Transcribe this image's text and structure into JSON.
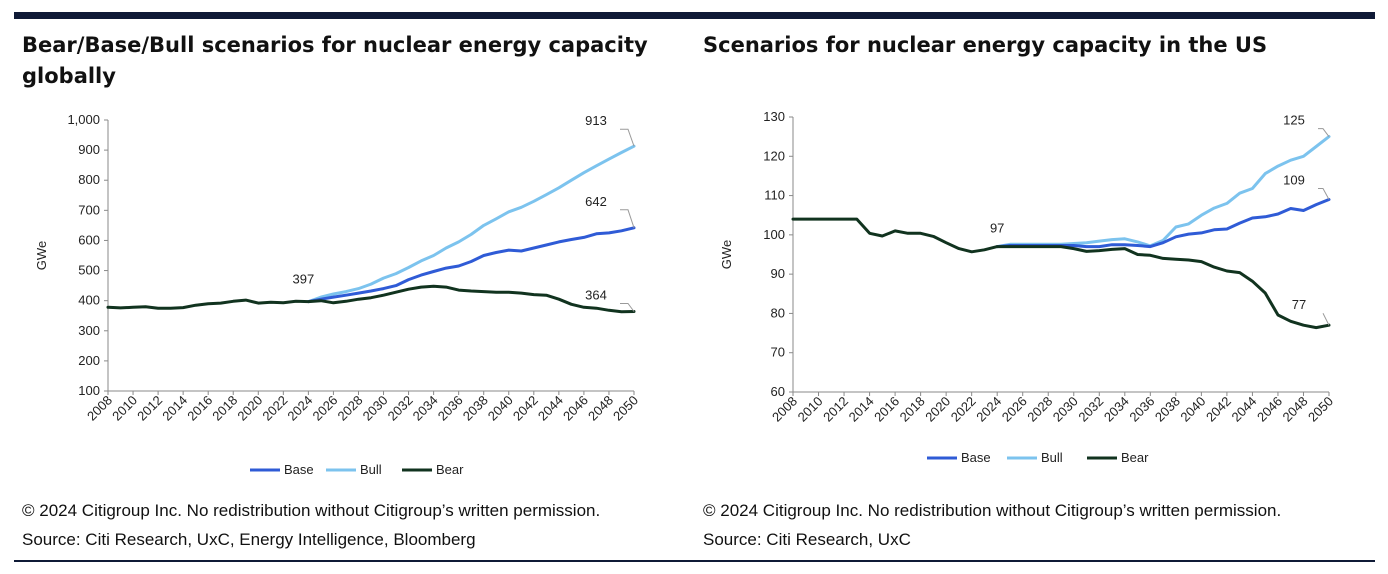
{
  "colors": {
    "base": "#2f5bd6",
    "bull": "#7cc3ee",
    "bear": "#11331f",
    "rule": "#0f1a36"
  },
  "charts": [
    {
      "title": "Bear/Base/Bull scenarios for nuclear energy capacity globally",
      "copyright": "© 2024 Citigroup Inc. No redistribution without Citigroup’s written permission.",
      "source": "Source: Citi Research, UxC, Energy Intelligence, Bloomberg"
    },
    {
      "title": "Scenarios for nuclear energy capacity in the US",
      "copyright": "© 2024 Citigroup Inc. No redistribution without Citigroup’s written permission.",
      "source": "Source: Citi Research, UxC"
    }
  ],
  "chart_data": [
    {
      "type": "line",
      "ylabel": "GWe",
      "ylim": [
        100,
        1000
      ],
      "yticks": [
        100,
        200,
        300,
        400,
        500,
        600,
        700,
        800,
        900,
        1000
      ],
      "ytick_labels": [
        "100",
        "200",
        "300",
        "400",
        "500",
        "600",
        "700",
        "800",
        "900",
        "1,000"
      ],
      "xlim": [
        2008,
        2050
      ],
      "xticks": [
        2008,
        2010,
        2012,
        2014,
        2016,
        2018,
        2020,
        2022,
        2024,
        2026,
        2028,
        2030,
        2032,
        2034,
        2036,
        2038,
        2040,
        2042,
        2044,
        2046,
        2048,
        2050
      ],
      "grid": false,
      "legend": "bottom-center",
      "series": [
        {
          "name": "Base",
          "x": [
            2024,
            2025,
            2026,
            2027,
            2028,
            2029,
            2030,
            2031,
            2032,
            2033,
            2034,
            2035,
            2036,
            2037,
            2038,
            2039,
            2040,
            2041,
            2042,
            2043,
            2044,
            2045,
            2046,
            2047,
            2048,
            2049,
            2050
          ],
          "y": [
            397,
            405,
            412,
            418,
            425,
            432,
            440,
            450,
            470,
            485,
            497,
            508,
            515,
            530,
            550,
            560,
            568,
            565,
            575,
            585,
            595,
            603,
            610,
            622,
            625,
            632,
            642
          ]
        },
        {
          "name": "Bull",
          "x": [
            2024,
            2025,
            2026,
            2027,
            2028,
            2029,
            2030,
            2031,
            2032,
            2033,
            2034,
            2035,
            2036,
            2037,
            2038,
            2039,
            2040,
            2041,
            2042,
            2043,
            2044,
            2045,
            2046,
            2047,
            2048,
            2049,
            2050
          ],
          "y": [
            397,
            412,
            422,
            430,
            440,
            455,
            475,
            490,
            510,
            532,
            550,
            575,
            595,
            620,
            650,
            672,
            695,
            710,
            730,
            752,
            775,
            800,
            825,
            848,
            870,
            892,
            913
          ]
        },
        {
          "name": "Bear",
          "x": [
            2008,
            2009,
            2010,
            2011,
            2012,
            2013,
            2014,
            2015,
            2016,
            2017,
            2018,
            2019,
            2020,
            2021,
            2022,
            2023,
            2024,
            2025,
            2026,
            2027,
            2028,
            2029,
            2030,
            2031,
            2032,
            2033,
            2034,
            2035,
            2036,
            2037,
            2038,
            2039,
            2040,
            2041,
            2042,
            2043,
            2044,
            2045,
            2046,
            2047,
            2048,
            2049,
            2050
          ],
          "y": [
            378,
            376,
            378,
            380,
            375,
            375,
            377,
            385,
            390,
            392,
            398,
            402,
            392,
            395,
            393,
            398,
            397,
            400,
            393,
            398,
            405,
            410,
            418,
            428,
            438,
            445,
            448,
            445,
            435,
            432,
            430,
            428,
            428,
            425,
            420,
            418,
            405,
            388,
            378,
            375,
            368,
            363,
            364
          ]
        }
      ],
      "annotations": [
        {
          "text": "397",
          "x": 2024,
          "y": 397
        },
        {
          "text": "913",
          "x": 2050,
          "y": 913
        },
        {
          "text": "642",
          "x": 2050,
          "y": 642
        },
        {
          "text": "364",
          "x": 2050,
          "y": 364
        }
      ]
    },
    {
      "type": "line",
      "ylabel": "GWe",
      "ylim": [
        60,
        130
      ],
      "yticks": [
        60,
        70,
        80,
        90,
        100,
        110,
        120,
        130
      ],
      "ytick_labels": [
        "60",
        "70",
        "80",
        "90",
        "100",
        "110",
        "120",
        "130"
      ],
      "xlim": [
        2008,
        2050
      ],
      "xticks": [
        2008,
        2010,
        2012,
        2014,
        2016,
        2018,
        2020,
        2022,
        2024,
        2026,
        2028,
        2030,
        2032,
        2034,
        2036,
        2038,
        2040,
        2042,
        2044,
        2046,
        2048,
        2050
      ],
      "grid": false,
      "legend": "bottom-center",
      "series": [
        {
          "name": "Base",
          "x": [
            2024,
            2025,
            2026,
            2027,
            2028,
            2029,
            2030,
            2031,
            2032,
            2033,
            2034,
            2035,
            2036,
            2037,
            2038,
            2039,
            2040,
            2041,
            2042,
            2043,
            2044,
            2045,
            2046,
            2047,
            2048,
            2049,
            2050
          ],
          "y": [
            97,
            97.3,
            97.3,
            97.3,
            97.3,
            97.3,
            97.3,
            97,
            97,
            97.5,
            97.5,
            97.3,
            97,
            98,
            99.5,
            100.2,
            100.5,
            101.3,
            101.5,
            103,
            104.3,
            104.6,
            105.3,
            106.7,
            106.2,
            107.7,
            109
          ]
        },
        {
          "name": "Bull",
          "x": [
            2024,
            2025,
            2026,
            2027,
            2028,
            2029,
            2030,
            2031,
            2032,
            2033,
            2034,
            2035,
            2036,
            2037,
            2038,
            2039,
            2040,
            2041,
            2042,
            2043,
            2044,
            2045,
            2046,
            2047,
            2048,
            2049,
            2050
          ],
          "y": [
            97,
            97.6,
            97.6,
            97.6,
            97.6,
            97.6,
            97.8,
            98,
            98.4,
            98.8,
            99,
            98.2,
            97.2,
            98.6,
            102,
            102.8,
            105,
            106.8,
            108,
            110.6,
            111.8,
            115.6,
            117.5,
            119,
            120,
            122.5,
            125
          ]
        },
        {
          "name": "Bear",
          "x": [
            2008,
            2009,
            2010,
            2011,
            2012,
            2013,
            2014,
            2015,
            2016,
            2017,
            2018,
            2019,
            2020,
            2021,
            2022,
            2023,
            2024,
            2025,
            2026,
            2027,
            2028,
            2029,
            2030,
            2031,
            2032,
            2033,
            2034,
            2035,
            2036,
            2037,
            2038,
            2039,
            2040,
            2041,
            2042,
            2043,
            2044,
            2045,
            2046,
            2047,
            2048,
            2049,
            2050
          ],
          "y": [
            104,
            104,
            104,
            104,
            104,
            104,
            100.4,
            99.7,
            101,
            100.4,
            100.4,
            99.6,
            98,
            96.5,
            95.7,
            96.2,
            97,
            97,
            97,
            97,
            97,
            97,
            96.5,
            95.8,
            96,
            96.3,
            96.5,
            95,
            94.8,
            94,
            93.8,
            93.6,
            93.2,
            91.8,
            90.8,
            90.4,
            88.2,
            85.2,
            79.6,
            78,
            77,
            76.4,
            77
          ]
        }
      ],
      "annotations": [
        {
          "text": "97",
          "x": 2024,
          "y": 97
        },
        {
          "text": "125",
          "x": 2050,
          "y": 125
        },
        {
          "text": "109",
          "x": 2050,
          "y": 109
        },
        {
          "text": "77",
          "x": 2050,
          "y": 77
        }
      ]
    }
  ]
}
